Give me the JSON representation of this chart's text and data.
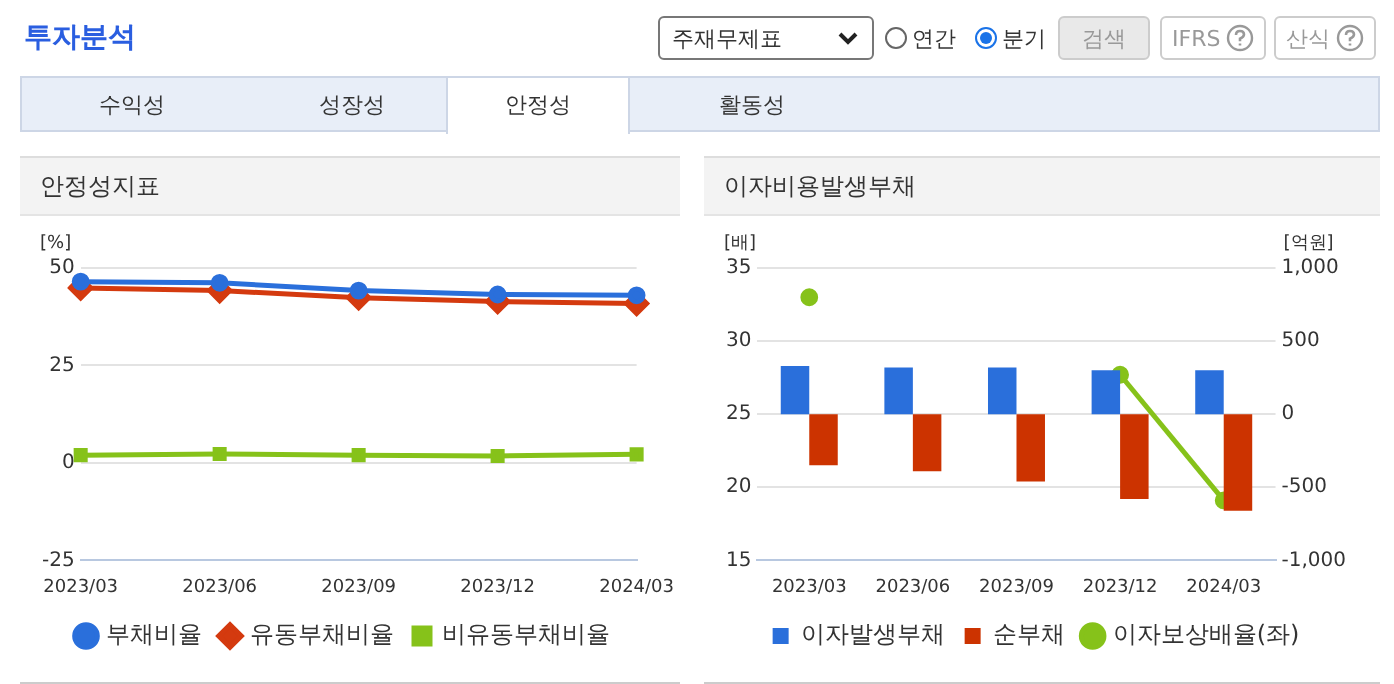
{
  "chart_data": [
    {
      "type": "other",
      "title": "투자분석",
      "annotations": [
        "주재무제표",
        "연간",
        "분기",
        "검색",
        "IFRS",
        "산식",
        "수익성",
        "성장성",
        "안정성",
        "활동성"
      ]
    },
    {
      "type": "line",
      "title": "안정성지표",
      "ylabel": "[%]",
      "categories": [
        "2023/03",
        "2023/06",
        "2023/09",
        "2023/12",
        "2024/03"
      ],
      "series": [
        {
          "name": "부채비율",
          "color": "#2a6fdb",
          "marker": "circle",
          "values": [
            46.5,
            46.2,
            44.2,
            43.2,
            43.0
          ]
        },
        {
          "name": "유동부채비율",
          "color": "#d43a0f",
          "marker": "diamond",
          "values": [
            44.9,
            44.2,
            42.4,
            41.4,
            40.9
          ]
        },
        {
          "name": "비유동부채비율",
          "color": "#86c21a",
          "marker": "square",
          "values": [
            2.0,
            2.3,
            2.0,
            1.8,
            2.2
          ]
        }
      ],
      "ylim": [
        -25,
        50
      ],
      "yticks": [
        -25,
        0,
        25,
        50
      ],
      "grid": "y",
      "legend": "bottom",
      "line_style": "solid"
    },
    {
      "type": "bar",
      "title": "이자비용발생부채",
      "ylabel": "[배]",
      "y2label": "[억원]",
      "categories": [
        "2023/03",
        "2023/06",
        "2023/09",
        "2023/12",
        "2024/03"
      ],
      "series": [
        {
          "name": "이자발생부채",
          "color": "#2a6fdb",
          "axis": "y2",
          "values": [
            330,
            320,
            320,
            300,
            300
          ]
        },
        {
          "name": "순부채",
          "color": "#cc3300",
          "axis": "y2",
          "values": [
            -350,
            -390,
            -460,
            -580,
            -660
          ]
        },
        {
          "name": "이자보상배율(좌)",
          "color": "#86c21a",
          "type": "line",
          "marker": "circle",
          "values": [
            33.0,
            null,
            null,
            27.7,
            19.1
          ]
        }
      ],
      "ylim": [
        15,
        35
      ],
      "yticks": [
        15,
        20,
        25,
        30,
        35
      ],
      "y2lim": [
        -1000,
        1000
      ],
      "y2ticks": [
        {
          "value": -1000,
          "label": "-1,000"
        },
        -500,
        0,
        500,
        {
          "value": 1000,
          "label": "1,000"
        }
      ],
      "grid": "y",
      "legend": "bottom"
    }
  ]
}
